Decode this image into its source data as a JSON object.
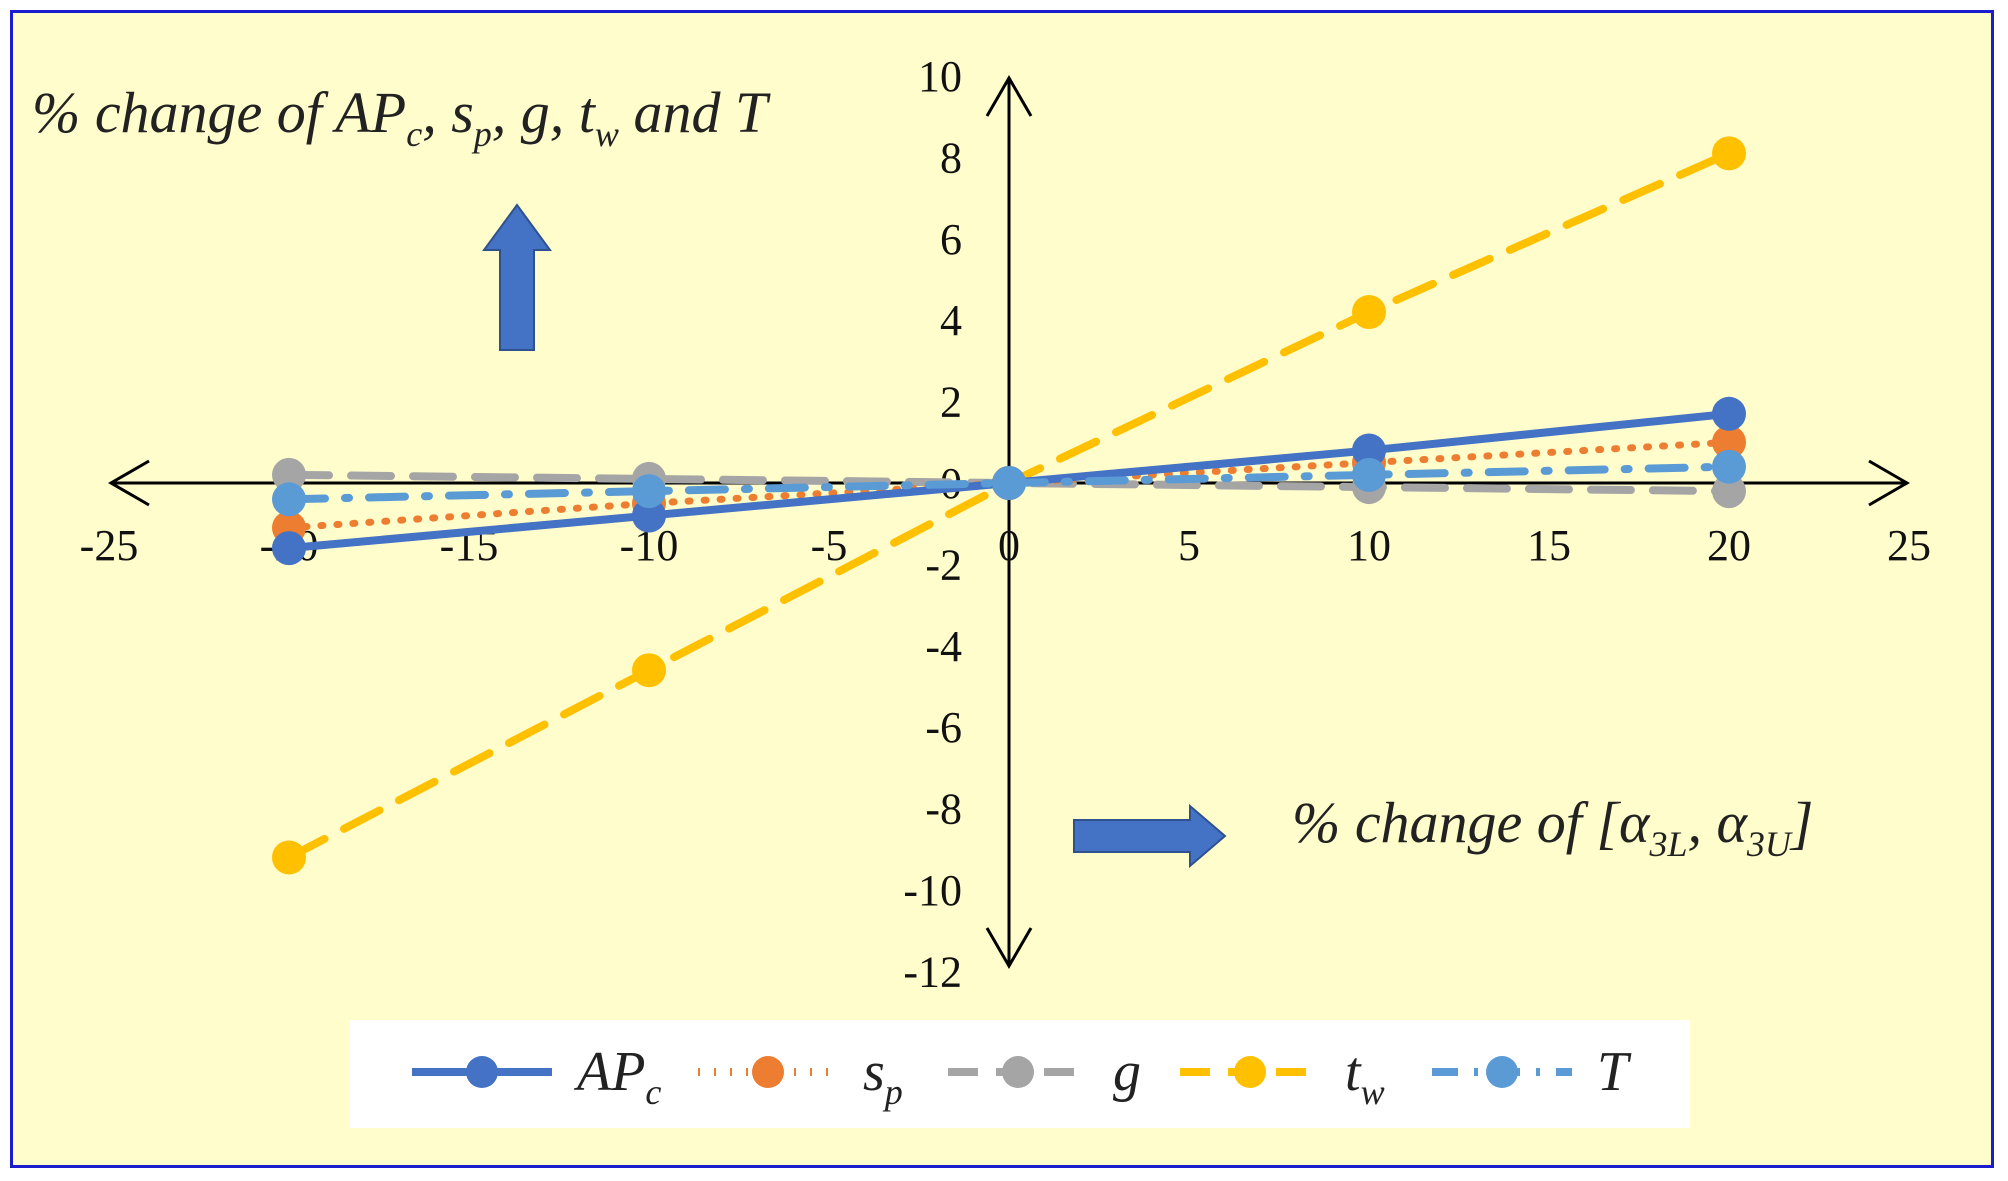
{
  "chart_data": {
    "type": "line",
    "title": "",
    "ylabel": "% change of AP_c, s_p, g, t_w and T",
    "xlabel": "% change of [α_3L, α_3U]",
    "xlim": [
      -25,
      25
    ],
    "ylim": [
      -12,
      10
    ],
    "x_ticks": [
      -25,
      -20,
      -15,
      -10,
      -5,
      0,
      5,
      10,
      15,
      20,
      25
    ],
    "y_ticks": [
      10,
      8,
      6,
      4,
      2,
      0,
      -2,
      -4,
      -6,
      -8,
      -10,
      -12
    ],
    "grid": false,
    "legend_position": "bottom",
    "x": [
      -20,
      -10,
      0,
      10,
      20
    ],
    "series": [
      {
        "name": "AP_c",
        "color": "#4472c4",
        "style": "solid",
        "values": [
          -1.6,
          -0.8,
          0,
          0.8,
          1.7
        ]
      },
      {
        "name": "s_p",
        "color": "#ed7d31",
        "style": "dotted",
        "values": [
          -1.1,
          -0.5,
          0,
          0.5,
          1.0
        ]
      },
      {
        "name": "g",
        "color": "#a5a5a5",
        "style": "dashed",
        "values": [
          0.2,
          0.1,
          0,
          -0.1,
          -0.2
        ]
      },
      {
        "name": "t_w",
        "color": "#ffc000",
        "style": "dashed",
        "values": [
          -9.2,
          -4.6,
          0,
          4.2,
          8.1
        ]
      },
      {
        "name": "T",
        "color": "#5b9bd5",
        "style": "dash-dot",
        "values": [
          -0.4,
          -0.2,
          0,
          0.2,
          0.4
        ]
      }
    ]
  },
  "annotations": {
    "y_label_text": "% change of ",
    "y_label_vars": "AP",
    "y_label_sub_c": "c",
    "y_label_rest": ", s",
    "y_label_sub_p": "p",
    "y_label_g": ", g, t",
    "y_label_sub_w": "w",
    "y_label_end": " and T",
    "x_label_text": "% change of [α",
    "x_label_sub1": "3L",
    "x_label_mid": ", α",
    "x_label_sub2": "3U",
    "x_label_end": "]"
  },
  "legend": [
    {
      "label": "AP",
      "sub": "c",
      "color": "#4472c4"
    },
    {
      "label": "s",
      "sub": "p",
      "color": "#ed7d31"
    },
    {
      "label": "g",
      "sub": "",
      "color": "#a5a5a5"
    },
    {
      "label": "t",
      "sub": "w",
      "color": "#ffc000"
    },
    {
      "label": "T",
      "sub": "",
      "color": "#5b9bd5"
    }
  ],
  "arrows": {
    "color": "#4472c4"
  }
}
